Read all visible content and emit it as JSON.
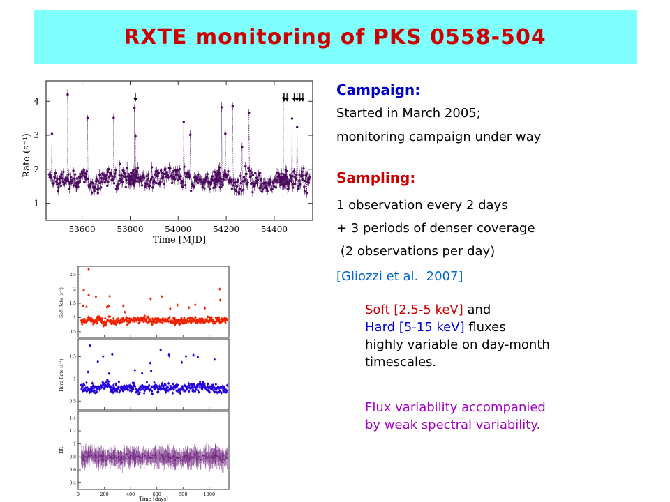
{
  "title": "RXTE monitoring of PKS 0558-504",
  "campaign": {
    "heading": "Campaign:",
    "lines": [
      "Started in March 2005;",
      "monitoring campaign under way"
    ]
  },
  "sampling": {
    "heading": "Sampling:",
    "lines": [
      "1 observation every 2 days",
      "+ 3 periods of denser coverage",
      " (2 observations per day)"
    ],
    "citation": "[Gliozzi et al.  2007]"
  },
  "description": {
    "soft": "Soft [2.5-5 keV]",
    "and": " and",
    "hard": "Hard [5-15 keV]",
    "fluxes": " fluxes",
    "line3": "highly variable on day-month",
    "line4": "timescales.",
    "flux_line1": "Flux variability accompanied",
    "flux_line2": "by weak spectral variability."
  },
  "colors": {
    "title_bg": "#80ffff",
    "title_text": "#cc0000",
    "heading": "#0000cc",
    "soft": "#ee2200",
    "hard": "#2200dd",
    "hr": "#6a1a7a",
    "rate": "#4b0a5e"
  },
  "chart_data": [
    {
      "type": "scatter",
      "xlabel": "Time  [MJD]",
      "ylabel": "Rate (s⁻¹)",
      "xlim": [
        53450,
        54560
      ],
      "ylim": [
        0.5,
        4.6
      ],
      "x_ticks": [
        "53600",
        "53800",
        "54000",
        "54200",
        "54400"
      ],
      "y_ticks": [
        "1",
        "2",
        "3",
        "4"
      ],
      "arrows_at": [
        53822,
        54441,
        54453,
        54483,
        54495,
        54507,
        54519
      ],
      "series": [
        {
          "points": "~500 monitoring points between MJD 53460 and 54545, rate mostly 1-2.5 s⁻¹ with flares up to ~4.2"
        }
      ],
      "peaks": [
        {
          "x": 53540,
          "y": 4.2
        },
        {
          "x": 53818,
          "y": 3.8
        },
        {
          "x": 54438,
          "y": 4.1
        }
      ]
    },
    {
      "type": "scatter",
      "ylabel": "Soft Rate (s⁻¹)",
      "xlim": [
        0,
        1150
      ],
      "ylim": [
        0.3,
        2.8
      ],
      "y_ticks": [
        "0.5",
        "1",
        "1.5",
        "2",
        "2.5"
      ],
      "peaks": [
        {
          "x": 80,
          "y": 2.7
        },
        {
          "x": 1080,
          "y": 2.0
        }
      ]
    },
    {
      "type": "scatter",
      "ylabel": "Hard Rate (s⁻¹)",
      "xlim": [
        0,
        1150
      ],
      "ylim": [
        0.3,
        1.9
      ],
      "y_ticks": [
        "0.5",
        "1",
        "1.5"
      ],
      "peaks": [
        {
          "x": 90,
          "y": 1.75
        },
        {
          "x": 260,
          "y": 1.55
        }
      ]
    },
    {
      "type": "scatter",
      "xlabel": "Time [days]",
      "ylabel": "HR",
      "xlim": [
        0,
        1150
      ],
      "ylim": [
        0.3,
        1.5
      ],
      "x_ticks": [
        "0",
        "200",
        "400",
        "600",
        "800",
        "1000"
      ],
      "y_ticks": [
        "0.4",
        "0.6",
        "0.8",
        "1",
        "1.2",
        "1.4"
      ],
      "reference_line": 0.8
    }
  ]
}
